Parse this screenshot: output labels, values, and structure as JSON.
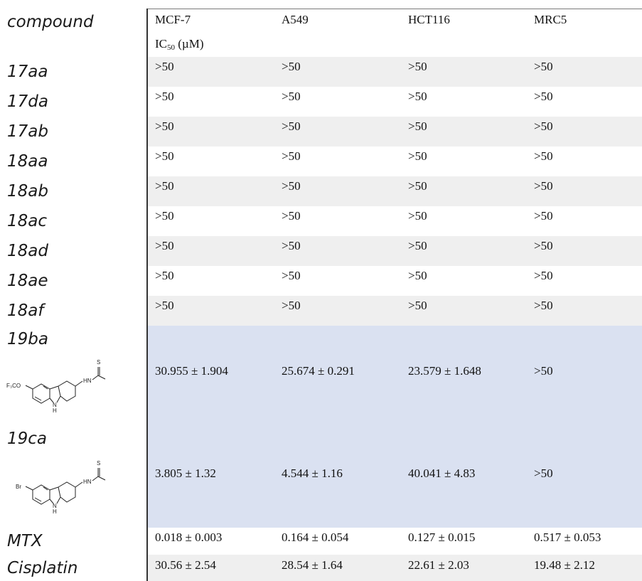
{
  "table": {
    "header": {
      "compound": "compound",
      "columns": [
        "MCF-7",
        "A549",
        "HCT116",
        "MRC5"
      ],
      "unit_main": "IC",
      "unit_sub": "50",
      "unit_rest": " (µM)"
    },
    "rows": [
      {
        "name": "17aa",
        "values": [
          ">50",
          ">50",
          ">50",
          ">50"
        ]
      },
      {
        "name": "17da",
        "values": [
          ">50",
          ">50",
          ">50",
          ">50"
        ]
      },
      {
        "name": "17ab",
        "values": [
          ">50",
          ">50",
          ">50",
          ">50"
        ]
      },
      {
        "name": "18aa",
        "values": [
          ">50",
          ">50",
          ">50",
          ">50"
        ]
      },
      {
        "name": "18ab",
        "values": [
          ">50",
          ">50",
          ">50",
          ">50"
        ]
      },
      {
        "name": "18ac",
        "values": [
          ">50",
          ">50",
          ">50",
          ">50"
        ]
      },
      {
        "name": "18ad",
        "values": [
          ">50",
          ">50",
          ">50",
          ">50"
        ]
      },
      {
        "name": "18ae",
        "values": [
          ">50",
          ">50",
          ">50",
          ">50"
        ]
      },
      {
        "name": "18af",
        "values": [
          ">50",
          ">50",
          ">50",
          ">50"
        ]
      },
      {
        "name": "19ba",
        "values": [
          "30.955 ± 1.904",
          "25.674 ± 0.291",
          "23.579 ± 1.648",
          ">50"
        ]
      },
      {
        "name": "19ca",
        "values": [
          "3.805 ± 1.32",
          "4.544 ± 1.16",
          "40.041 ± 4.83",
          ">50"
        ]
      },
      {
        "name": "MTX",
        "values": [
          "0.018 ± 0.003",
          "0.164 ± 0.054",
          "0.127 ± 0.015",
          "0.517 ± 0.053"
        ]
      },
      {
        "name": "Cisplatin",
        "values": [
          "30.56 ± 2.54",
          "28.54 ± 1.64",
          "22.61 ± 2.03",
          "19.48 ± 2.12"
        ]
      }
    ],
    "structures": {
      "19ba": {
        "substituent": "F₃CO",
        "nh": "HN",
        "s": "S",
        "h": "H",
        "n": "N"
      },
      "19ca": {
        "substituent": "Br",
        "nh": "HN",
        "s": "S",
        "h": "H",
        "n": "N"
      }
    },
    "colors": {
      "shade": "#efefef",
      "highlight": "#dae1f1",
      "rule": "#333333"
    }
  }
}
